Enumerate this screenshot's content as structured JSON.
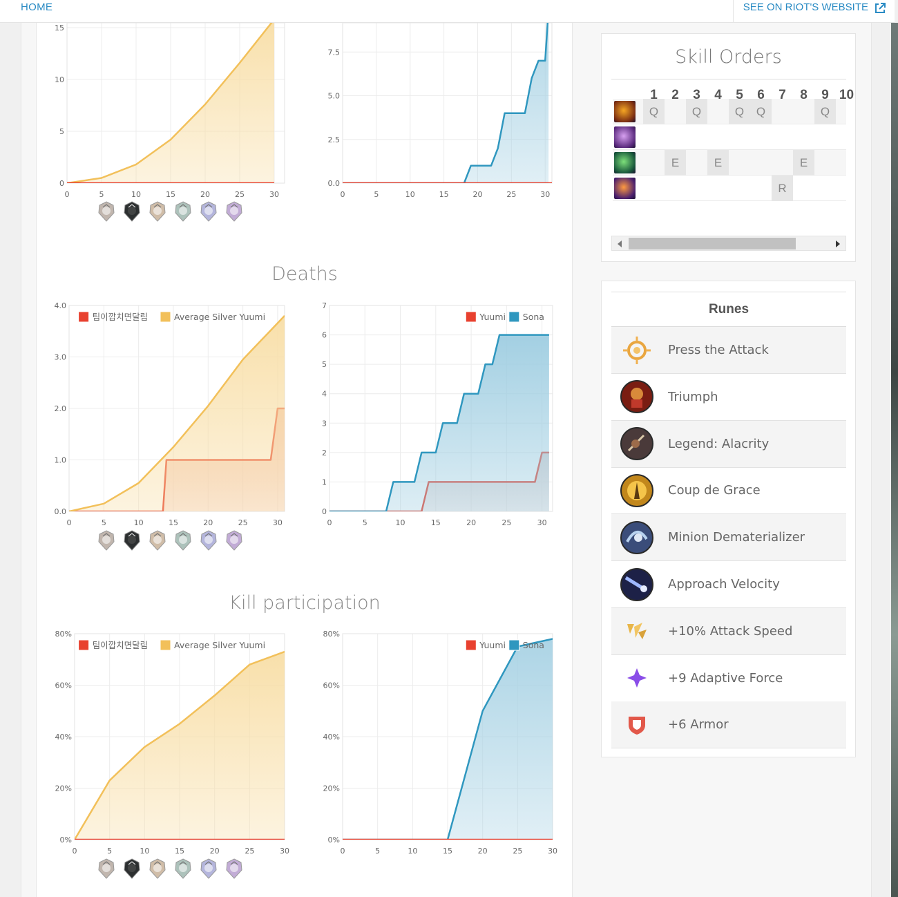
{
  "header": {
    "home_label": "HOME",
    "riot_label": "SEE ON RIOT'S WEBSITE",
    "riot_icon": "external-link-icon"
  },
  "sections": {
    "deaths_title": "Deaths",
    "kill_participation_title": "Kill participation"
  },
  "colors": {
    "player_red": "#e8412f",
    "average_yellow": "#f2c05a",
    "opponent_blue": "#2f97bf",
    "link_blue": "#2a8bc4"
  },
  "legends": {
    "player_name": "팀이깝치면달림",
    "average_label": "Average Silver Yuumi",
    "champion_label": "Yuumi",
    "opponent_label": "Sona"
  },
  "rank_badges": [
    "iron-badge-icon",
    "bronze-dark-badge-icon",
    "silver-badge-icon",
    "gold-badge-icon",
    "platinum-badge-icon",
    "diamond-badge-icon"
  ],
  "chart_data": [
    {
      "type": "area",
      "x_ticks": [
        0,
        5,
        10,
        15,
        20,
        25,
        30
      ],
      "y_ticks": [
        "0",
        "5",
        "10",
        "15"
      ],
      "ylim": [
        0,
        15
      ],
      "series": [
        {
          "x": [
            0,
            5,
            10,
            15,
            20,
            25,
            30
          ],
          "values": [
            0,
            0.5,
            1.8,
            4.2,
            7.6,
            11.6,
            15.8
          ]
        },
        {
          "x": [
            0,
            30
          ],
          "values": [
            0,
            0
          ]
        }
      ]
    },
    {
      "type": "area",
      "x_ticks": [
        0,
        5,
        10,
        15,
        20,
        25,
        30
      ],
      "y_ticks": [
        "0.0",
        "2.5",
        "5.0",
        "7.5"
      ],
      "ylim": [
        0,
        10
      ],
      "series": [
        {
          "x": [
            0,
            18,
            19,
            22,
            23,
            24,
            27,
            28,
            29,
            30,
            30.5
          ],
          "values": [
            0,
            0,
            1,
            1,
            2,
            4,
            4,
            6,
            7,
            7,
            10
          ]
        },
        {
          "x": [
            0,
            31
          ],
          "values": [
            0,
            0
          ]
        }
      ]
    },
    {
      "type": "area",
      "x_ticks": [
        0,
        5,
        10,
        15,
        20,
        25,
        30
      ],
      "y_ticks": [
        "0.0",
        "1.0",
        "2.0",
        "3.0",
        "4.0"
      ],
      "ylim": [
        0,
        4
      ],
      "legend": [
        "팀이깝치면달림",
        "Average Silver Yuumi"
      ],
      "series": [
        {
          "name": "팀이깝치면달림",
          "x": [
            0,
            13.5,
            14,
            29,
            30,
            31
          ],
          "values": [
            0,
            0,
            1,
            1,
            2,
            2
          ]
        },
        {
          "name": "Average Silver Yuumi",
          "x": [
            0,
            5,
            10,
            15,
            20,
            25,
            31
          ],
          "values": [
            0,
            0.15,
            0.55,
            1.25,
            2.05,
            2.95,
            3.8
          ]
        }
      ]
    },
    {
      "type": "area",
      "x_ticks": [
        0,
        5,
        10,
        15,
        20,
        25,
        30
      ],
      "y_ticks": [
        "0",
        "1",
        "2",
        "3",
        "4",
        "5",
        "6",
        "7"
      ],
      "ylim": [
        0,
        7
      ],
      "legend": [
        "Yuumi",
        "Sona"
      ],
      "series": [
        {
          "name": "Yuumi",
          "x": [
            0,
            13,
            14,
            29,
            30,
            31
          ],
          "values": [
            0,
            0,
            1,
            1,
            2,
            2
          ]
        },
        {
          "name": "Sona",
          "x": [
            0,
            8,
            9,
            12,
            13,
            15,
            16,
            18,
            19,
            21,
            22,
            23,
            24,
            25,
            31
          ],
          "values": [
            0,
            0,
            1,
            1,
            2,
            2,
            3,
            3,
            4,
            4,
            5,
            5,
            6,
            6,
            6
          ]
        }
      ]
    },
    {
      "type": "area",
      "x_ticks": [
        0,
        5,
        10,
        15,
        20,
        25,
        30
      ],
      "y_ticks": [
        "0%",
        "20%",
        "40%",
        "60%",
        "80%"
      ],
      "ylim": [
        0,
        80
      ],
      "legend": [
        "팀이깝치면달림",
        "Average Silver Yuumi"
      ],
      "series": [
        {
          "name": "팀이깝치면달림",
          "x": [
            0,
            30
          ],
          "values": [
            0,
            0
          ]
        },
        {
          "name": "Average Silver Yuumi",
          "x": [
            0,
            5,
            10,
            15,
            20,
            25,
            30
          ],
          "values": [
            0,
            23,
            36,
            45,
            56,
            68,
            73
          ]
        }
      ]
    },
    {
      "type": "area",
      "x_ticks": [
        0,
        5,
        10,
        15,
        20,
        25,
        30
      ],
      "y_ticks": [
        "0%",
        "20%",
        "40%",
        "60%",
        "80%"
      ],
      "ylim": [
        0,
        80
      ],
      "legend": [
        "Yuumi",
        "Sona"
      ],
      "series": [
        {
          "name": "Yuumi",
          "x": [
            0,
            30
          ],
          "values": [
            0,
            0
          ]
        },
        {
          "name": "Sona",
          "x": [
            0,
            15,
            20,
            25,
            30
          ],
          "values": [
            0,
            0,
            50,
            75,
            78
          ]
        }
      ]
    }
  ],
  "skill_orders": {
    "title": "Skill Orders",
    "levels": [
      "1",
      "2",
      "3",
      "4",
      "5",
      "6",
      "7",
      "8",
      "9",
      "10"
    ],
    "rows": [
      {
        "icon": "q-skill-icon",
        "cells": [
          "Q",
          "",
          "Q",
          "",
          "Q",
          "Q",
          "",
          "",
          "Q",
          ""
        ]
      },
      {
        "icon": "w-skill-icon",
        "cells": [
          "",
          "",
          "",
          "",
          "",
          "",
          "",
          "",
          "",
          ""
        ]
      },
      {
        "icon": "e-skill-icon",
        "cells": [
          "",
          "E",
          "",
          "E",
          "",
          "",
          "",
          "E",
          "",
          ""
        ]
      },
      {
        "icon": "r-skill-icon",
        "cells": [
          "",
          "",
          "",
          "",
          "",
          "",
          "R",
          "",
          "",
          ""
        ]
      }
    ]
  },
  "runes": {
    "title": "Runes",
    "items": [
      {
        "label": "Press the Attack",
        "icon": "press-the-attack-icon"
      },
      {
        "label": "Triumph",
        "icon": "triumph-icon"
      },
      {
        "label": "Legend: Alacrity",
        "icon": "legend-alacrity-icon"
      },
      {
        "label": "Coup de Grace",
        "icon": "coup-de-grace-icon"
      },
      {
        "label": "Minion Dematerializer",
        "icon": "minion-dematerializer-icon"
      },
      {
        "label": "Approach Velocity",
        "icon": "approach-velocity-icon"
      },
      {
        "label": "+10% Attack Speed",
        "icon": "attack-speed-shard-icon"
      },
      {
        "label": "+9 Adaptive Force",
        "icon": "adaptive-force-shard-icon"
      },
      {
        "label": "+6 Armor",
        "icon": "armor-shard-icon"
      }
    ]
  }
}
